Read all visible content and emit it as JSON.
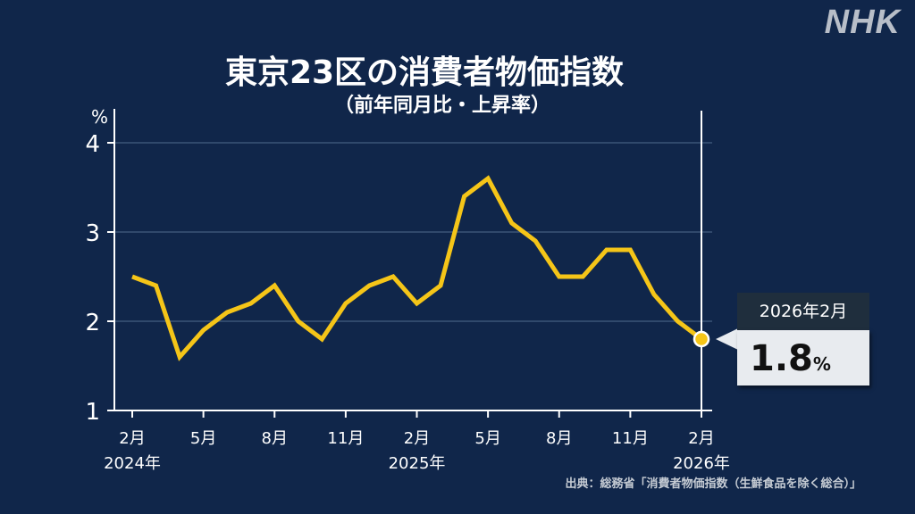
{
  "logo": "NHK",
  "chart_data": {
    "type": "line",
    "title": "東京23区の消費者物価指数",
    "subtitle": "（前年同月比・上昇率）",
    "ylabel": "%",
    "ylim": [
      1,
      4
    ],
    "yticks": [
      1,
      2,
      3,
      4
    ],
    "grid": true,
    "x": [
      "2024-02",
      "2024-03",
      "2024-04",
      "2024-05",
      "2024-06",
      "2024-07",
      "2024-08",
      "2024-09",
      "2024-10",
      "2024-11",
      "2024-12",
      "2025-01",
      "2025-02",
      "2025-03",
      "2025-04",
      "2025-05",
      "2025-06",
      "2025-07",
      "2025-08",
      "2025-09",
      "2025-10",
      "2025-11",
      "2025-12",
      "2026-01",
      "2026-02"
    ],
    "values": [
      2.5,
      2.4,
      1.6,
      1.9,
      2.1,
      2.2,
      2.4,
      2.0,
      1.8,
      2.2,
      2.4,
      2.5,
      2.2,
      2.4,
      3.4,
      3.6,
      3.1,
      2.9,
      2.5,
      2.5,
      2.8,
      2.8,
      2.3,
      2.0,
      1.8
    ],
    "xtick_labels": [
      {
        "index": 0,
        "label": "2月",
        "year": "2024年"
      },
      {
        "index": 3,
        "label": "5月"
      },
      {
        "index": 6,
        "label": "8月"
      },
      {
        "index": 9,
        "label": "11月"
      },
      {
        "index": 12,
        "label": "2月",
        "year": "2025年"
      },
      {
        "index": 15,
        "label": "5月"
      },
      {
        "index": 18,
        "label": "8月"
      },
      {
        "index": 21,
        "label": "11月"
      },
      {
        "index": 24,
        "label": "2月",
        "year": "2026年"
      }
    ],
    "line_color": "#f5c518",
    "callout": {
      "date": "2026年2月",
      "value": "1.8",
      "unit": "%"
    }
  },
  "source": "出典：総務省「消費者物価指数（生鮮食品を除く総合）」"
}
